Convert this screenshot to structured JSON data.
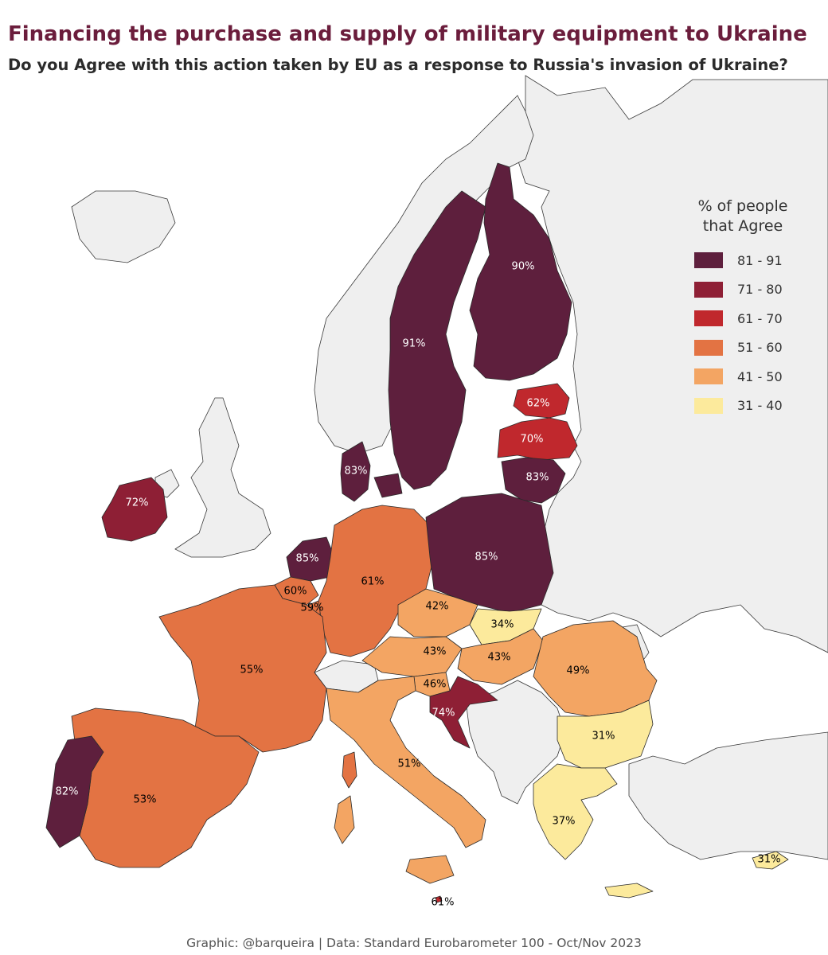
{
  "title": "Financing the purchase and supply of military equipment to Ukraine",
  "subtitle": "Do you Agree with this action taken by EU as a response to Russia's invasion of Ukraine?",
  "caption": "Graphic: @barqueira | Data: Standard Eurobarometer 100 - Oct/Nov 2023",
  "legend": {
    "title_line1": "% of people",
    "title_line2": "that Agree",
    "items": [
      {
        "label": "81 - 91",
        "color": "#5e1f3d"
      },
      {
        "label": "71 - 80",
        "color": "#8e1f35"
      },
      {
        "label": "61 - 70",
        "color": "#c0282d"
      },
      {
        "label": "51 - 60",
        "color": "#e37343"
      },
      {
        "label": "41 - 50",
        "color": "#f3a563"
      },
      {
        "label": "31 - 40",
        "color": "#fcea9c"
      }
    ]
  },
  "colors": {
    "non_member": "#efefef",
    "sea": "#ffffff",
    "title": "#6b1d3c"
  },
  "countries": [
    {
      "name": "Sweden",
      "value": "91%",
      "bin": "81 - 91"
    },
    {
      "name": "Finland",
      "value": "90%",
      "bin": "81 - 91"
    },
    {
      "name": "Estonia",
      "value": "62%",
      "bin": "61 - 70"
    },
    {
      "name": "Latvia",
      "value": "70%",
      "bin": "61 - 70"
    },
    {
      "name": "Lithuania",
      "value": "83%",
      "bin": "81 - 91"
    },
    {
      "name": "Denmark",
      "value": "83%",
      "bin": "81 - 91"
    },
    {
      "name": "Ireland",
      "value": "72%",
      "bin": "71 - 80"
    },
    {
      "name": "Netherlands",
      "value": "85%",
      "bin": "81 - 91"
    },
    {
      "name": "Poland",
      "value": "85%",
      "bin": "81 - 91"
    },
    {
      "name": "Germany",
      "value": "61%",
      "bin": "61 - 70"
    },
    {
      "name": "Belgium",
      "value": "60%",
      "bin": "51 - 60"
    },
    {
      "name": "Luxembourg",
      "value": "59%",
      "bin": "51 - 60"
    },
    {
      "name": "Czechia",
      "value": "42%",
      "bin": "41 - 50"
    },
    {
      "name": "Slovakia",
      "value": "34%",
      "bin": "31 - 40"
    },
    {
      "name": "Austria",
      "value": "43%",
      "bin": "41 - 50"
    },
    {
      "name": "Hungary",
      "value": "43%",
      "bin": "41 - 50"
    },
    {
      "name": "Romania",
      "value": "49%",
      "bin": "41 - 50"
    },
    {
      "name": "Slovenia",
      "value": "46%",
      "bin": "41 - 50"
    },
    {
      "name": "Croatia",
      "value": "74%",
      "bin": "71 - 80"
    },
    {
      "name": "France",
      "value": "55%",
      "bin": "51 - 60"
    },
    {
      "name": "Bulgaria",
      "value": "31%",
      "bin": "31 - 40"
    },
    {
      "name": "Italy",
      "value": "51%",
      "bin": "51 - 60"
    },
    {
      "name": "Spain",
      "value": "53%",
      "bin": "51 - 60"
    },
    {
      "name": "Portugal",
      "value": "82%",
      "bin": "81 - 91"
    },
    {
      "name": "Greece",
      "value": "37%",
      "bin": "31 - 40"
    },
    {
      "name": "Cyprus",
      "value": "31%",
      "bin": "31 - 40"
    },
    {
      "name": "Malta",
      "value": "61%",
      "bin": "61 - 70"
    }
  ]
}
